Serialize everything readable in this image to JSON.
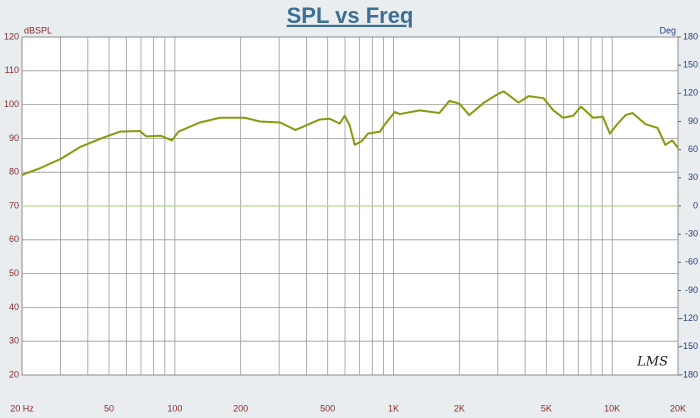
{
  "chart_data": {
    "type": "line",
    "title": "SPL vs Freq",
    "ylabel": "dBSPL",
    "y2label": "Deg",
    "watermark": "LMS",
    "xscale": "log",
    "grid": true,
    "xlim": [
      20,
      20000
    ],
    "ylim": [
      20,
      120
    ],
    "y2lim": [
      -180,
      180
    ],
    "xticks": [
      {
        "value": 20,
        "label": "20 Hz"
      },
      50,
      100,
      200,
      500,
      {
        "value": 1000,
        "label": "1K"
      },
      {
        "value": 2000,
        "label": "2K"
      },
      {
        "value": 5000,
        "label": "5K"
      },
      {
        "value": 10000,
        "label": "10K"
      },
      {
        "value": 20000,
        "label": "20K"
      }
    ],
    "xgrid": [
      20,
      30,
      40,
      50,
      60,
      70,
      80,
      90,
      100,
      200,
      300,
      400,
      500,
      600,
      700,
      800,
      900,
      1000,
      2000,
      3000,
      4000,
      5000,
      6000,
      7000,
      8000,
      9000,
      10000,
      20000
    ],
    "yticks": [
      20,
      30,
      40,
      50,
      60,
      70,
      80,
      90,
      100,
      110,
      120
    ],
    "y2ticks": [
      -180,
      -150,
      -120,
      -90,
      -60,
      -30,
      0,
      30,
      60,
      90,
      120,
      150,
      180
    ],
    "series": [
      {
        "color": "#8a9a10",
        "x": [
          20,
          24,
          30,
          37,
          46,
          56,
          69,
          74,
          86,
          97,
          104,
          130,
          161,
          209,
          245,
          303,
          356,
          375,
          460,
          511,
          567,
          598,
          630,
          665,
          716,
          764,
          868,
          914,
          1014,
          1068,
          1316,
          1621,
          1800,
          2000,
          2220,
          2595,
          3032,
          3194,
          3734,
          4148,
          4850,
          5380,
          5970,
          6630,
          7200,
          8180,
          9070,
          9760,
          10610,
          11530,
          12400,
          14210,
          16130,
          17500,
          18820,
          20000
        ],
        "values": [
          79.2,
          81.1,
          83.9,
          87.5,
          90,
          92,
          92.2,
          90.6,
          90.8,
          89.4,
          92,
          94.7,
          96.1,
          96.1,
          95,
          94.7,
          92.5,
          93.1,
          95.6,
          95.8,
          94.4,
          96.7,
          93.9,
          88.1,
          89.2,
          91.4,
          92,
          94.2,
          97.8,
          97.2,
          98.3,
          97.5,
          101.1,
          100.3,
          96.9,
          100.6,
          103.3,
          103.9,
          100.6,
          102.5,
          101.9,
          98.3,
          96.1,
          96.7,
          99.4,
          96.1,
          96.4,
          91.4,
          94.4,
          96.9,
          97.5,
          94.2,
          93.1,
          88.1,
          89.4,
          87.2
        ]
      },
      {
        "color": "#b9d98f",
        "axis": "y2",
        "x": [
          20,
          20000
        ],
        "values": [
          0,
          0
        ]
      }
    ]
  }
}
